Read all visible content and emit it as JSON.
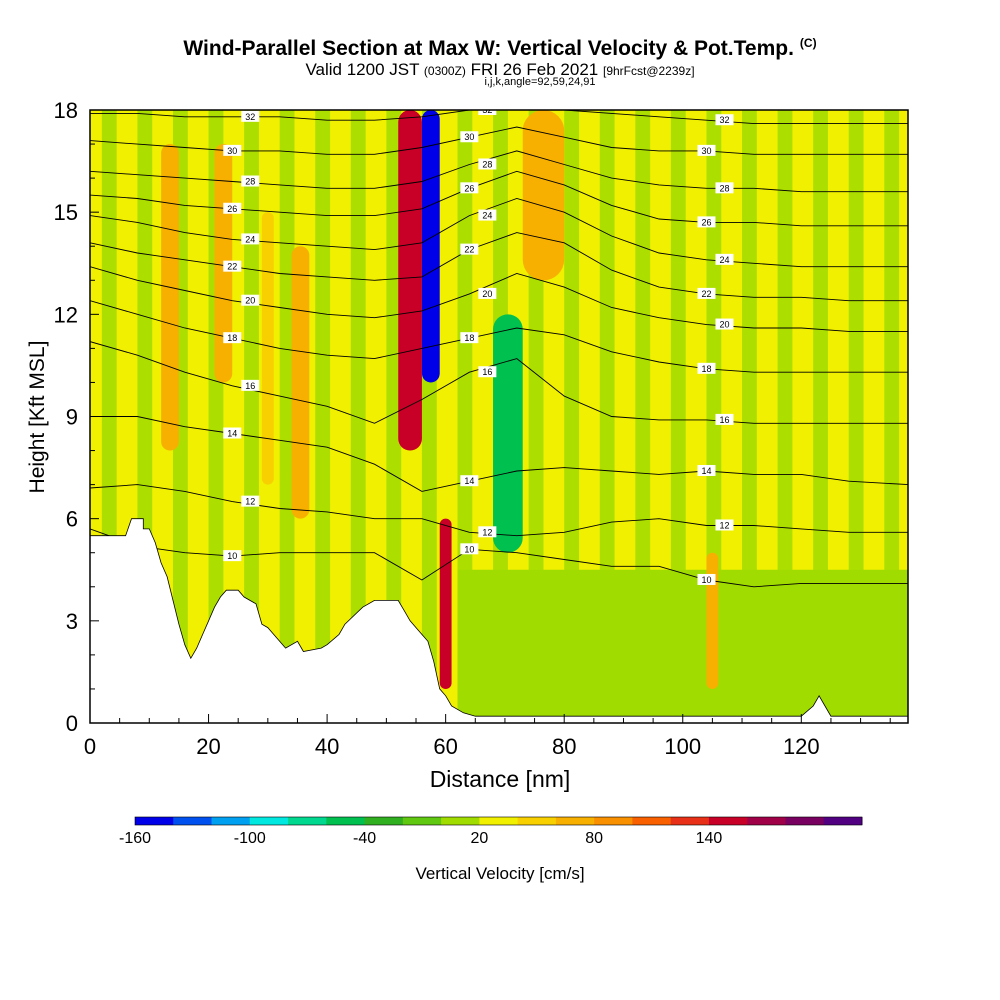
{
  "header": {
    "title": "Wind-Parallel Section at Max W: Vertical Velocity & Pot.Temp.",
    "copyright": "(C)",
    "valid_prefix": "Valid 1200 JST",
    "valid_utc": "(0300Z)",
    "valid_date": "FRI 26 Feb 2021",
    "forecast": "[9hrFcst@2239z]",
    "indices": "i,j,k,angle=92,59,24,91"
  },
  "chart_data": {
    "type": "heatmap",
    "xlabel": "Distance [nm]",
    "ylabel": "Height [Kft MSL]",
    "xlim": [
      0,
      138
    ],
    "ylim": [
      0,
      18
    ],
    "x_ticks": [
      0,
      20,
      40,
      60,
      80,
      100,
      120
    ],
    "y_ticks": [
      0,
      3,
      6,
      9,
      12,
      15,
      18
    ],
    "colorbar": {
      "label": "Vertical Velocity [cm/s]",
      "tick_labels": [
        "-160",
        "-100",
        "-40",
        "20",
        "80",
        "140"
      ],
      "colors": [
        "#0000e8",
        "#0050f0",
        "#00a0f0",
        "#00e8e0",
        "#00d890",
        "#00c050",
        "#30b020",
        "#60c810",
        "#a0dc00",
        "#f0f000",
        "#f8d000",
        "#f8b000",
        "#f89000",
        "#f86000",
        "#e83018",
        "#c80028",
        "#a00048",
        "#780060",
        "#500080"
      ]
    },
    "terrain_kft": [
      [
        0,
        5.5
      ],
      [
        6,
        5.5
      ],
      [
        7,
        6.0
      ],
      [
        9,
        6.0
      ],
      [
        9,
        5.7
      ],
      [
        10,
        5.7
      ],
      [
        11,
        5.3
      ],
      [
        12,
        4.7
      ],
      [
        13,
        4.3
      ],
      [
        14,
        3.6
      ],
      [
        15,
        2.9
      ],
      [
        16,
        2.3
      ],
      [
        17,
        1.9
      ],
      [
        18,
        2.2
      ],
      [
        19,
        2.6
      ],
      [
        20,
        3.0
      ],
      [
        21,
        3.4
      ],
      [
        22,
        3.7
      ],
      [
        23,
        3.9
      ],
      [
        25,
        3.9
      ],
      [
        26,
        3.7
      ],
      [
        28,
        3.5
      ],
      [
        29,
        2.9
      ],
      [
        30,
        2.8
      ],
      [
        31,
        2.6
      ],
      [
        33,
        2.2
      ],
      [
        35,
        2.4
      ],
      [
        36,
        2.1
      ],
      [
        39,
        2.2
      ],
      [
        40,
        2.3
      ],
      [
        42,
        2.6
      ],
      [
        43,
        2.9
      ],
      [
        46,
        3.4
      ],
      [
        48,
        3.6
      ],
      [
        52,
        3.6
      ],
      [
        53,
        3.3
      ],
      [
        54,
        3.0
      ],
      [
        55,
        2.8
      ],
      [
        57,
        2.4
      ],
      [
        58,
        1.8
      ],
      [
        59,
        1.0
      ],
      [
        60,
        0.8
      ],
      [
        61,
        0.5
      ],
      [
        63,
        0.3
      ],
      [
        65,
        0.2
      ],
      [
        70,
        0.2
      ],
      [
        120,
        0.2
      ],
      [
        122,
        0.5
      ],
      [
        123,
        0.8
      ],
      [
        124,
        0.5
      ],
      [
        125,
        0.2
      ],
      [
        138,
        0.2
      ]
    ],
    "theta_contours": [
      {
        "label": "10",
        "z": [
          5.7,
          5.2,
          5.0,
          4.9,
          5.0,
          5.0,
          5.0,
          4.2,
          5.1,
          5.0,
          4.8,
          4.6,
          4.6,
          4.2,
          4.0,
          4.1,
          4.1,
          4.1
        ]
      },
      {
        "label": "12",
        "z": [
          6.9,
          7.0,
          6.8,
          6.5,
          6.3,
          6.2,
          6.0,
          6.0,
          5.6,
          5.5,
          5.6,
          5.9,
          6.0,
          5.8,
          5.8,
          5.7,
          5.6,
          5.6
        ]
      },
      {
        "label": "14",
        "z": [
          9.0,
          9.0,
          8.7,
          8.5,
          8.3,
          8.1,
          7.6,
          6.8,
          7.1,
          7.4,
          7.5,
          7.4,
          7.3,
          7.4,
          7.3,
          7.3,
          7.1,
          7.0
        ]
      },
      {
        "label": "16",
        "z": [
          11.2,
          10.8,
          10.3,
          9.9,
          9.6,
          9.3,
          8.8,
          9.5,
          10.3,
          10.7,
          9.6,
          9.0,
          8.9,
          8.9,
          8.8,
          8.8,
          8.8,
          8.8
        ]
      },
      {
        "label": "18",
        "z": [
          12.4,
          12.0,
          11.6,
          11.3,
          11.0,
          10.8,
          10.7,
          11.0,
          11.3,
          11.6,
          11.4,
          10.9,
          10.6,
          10.4,
          10.3,
          10.3,
          10.3,
          10.3
        ]
      },
      {
        "label": "20",
        "z": [
          13.4,
          13.0,
          12.7,
          12.4,
          12.2,
          12.0,
          11.9,
          12.1,
          12.6,
          13.2,
          12.8,
          12.2,
          11.9,
          11.7,
          11.6,
          11.6,
          11.5,
          11.5
        ]
      },
      {
        "label": "22",
        "z": [
          14.1,
          13.8,
          13.6,
          13.4,
          13.2,
          13.1,
          13.0,
          13.1,
          13.9,
          14.4,
          14.1,
          13.3,
          12.8,
          12.6,
          12.5,
          12.5,
          12.4,
          12.4
        ]
      },
      {
        "label": "24",
        "z": [
          14.9,
          14.7,
          14.4,
          14.2,
          14.1,
          14.0,
          13.9,
          14.1,
          14.9,
          15.4,
          15.0,
          14.3,
          13.8,
          13.6,
          13.5,
          13.4,
          13.4,
          13.4
        ]
      },
      {
        "label": "26",
        "z": [
          15.5,
          15.4,
          15.2,
          15.1,
          15.0,
          14.9,
          14.9,
          15.1,
          15.7,
          16.2,
          15.8,
          15.2,
          14.8,
          14.7,
          14.7,
          14.6,
          14.6,
          14.6
        ]
      },
      {
        "label": "28",
        "z": [
          16.2,
          16.1,
          16.0,
          15.9,
          15.8,
          15.7,
          15.7,
          15.9,
          16.4,
          16.8,
          16.4,
          16.0,
          15.8,
          15.7,
          15.7,
          15.6,
          15.6,
          15.6
        ]
      },
      {
        "label": "30",
        "z": [
          17.1,
          17.0,
          16.9,
          16.8,
          16.8,
          16.7,
          16.7,
          16.9,
          17.2,
          17.5,
          17.2,
          16.9,
          16.8,
          16.8,
          16.7,
          16.7,
          16.7,
          16.7
        ]
      },
      {
        "label": "32",
        "z": [
          17.9,
          17.9,
          17.8,
          17.8,
          17.8,
          17.7,
          17.7,
          17.8,
          18.0,
          18.0,
          18.0,
          17.9,
          17.8,
          17.7,
          17.6,
          17.6,
          17.6,
          17.6
        ]
      }
    ],
    "contour_x": [
      0,
      8,
      16,
      24,
      32,
      40,
      48,
      56,
      64,
      72,
      80,
      88,
      96,
      104,
      112,
      120,
      128,
      138
    ],
    "velocity_cells": [
      {
        "x": [
          12,
          15
        ],
        "z": [
          8,
          17
        ],
        "v": 60
      },
      {
        "x": [
          21,
          24
        ],
        "z": [
          10,
          17
        ],
        "v": 50
      },
      {
        "x": [
          29,
          31
        ],
        "z": [
          7,
          15
        ],
        "v": 40
      },
      {
        "x": [
          34,
          37
        ],
        "z": [
          6,
          14
        ],
        "v": 50
      },
      {
        "x": [
          52,
          56
        ],
        "z": [
          8,
          18
        ],
        "v": 140
      },
      {
        "x": [
          56,
          59
        ],
        "z": [
          10,
          18
        ],
        "v": -160
      },
      {
        "x": [
          59,
          61
        ],
        "z": [
          1,
          6
        ],
        "v": 140
      },
      {
        "x": [
          68,
          73
        ],
        "z": [
          5,
          12
        ],
        "v": -60
      },
      {
        "x": [
          73,
          80
        ],
        "z": [
          13,
          18
        ],
        "v": 60
      },
      {
        "x": [
          104,
          106
        ],
        "z": [
          1,
          5
        ],
        "v": 60
      }
    ]
  }
}
